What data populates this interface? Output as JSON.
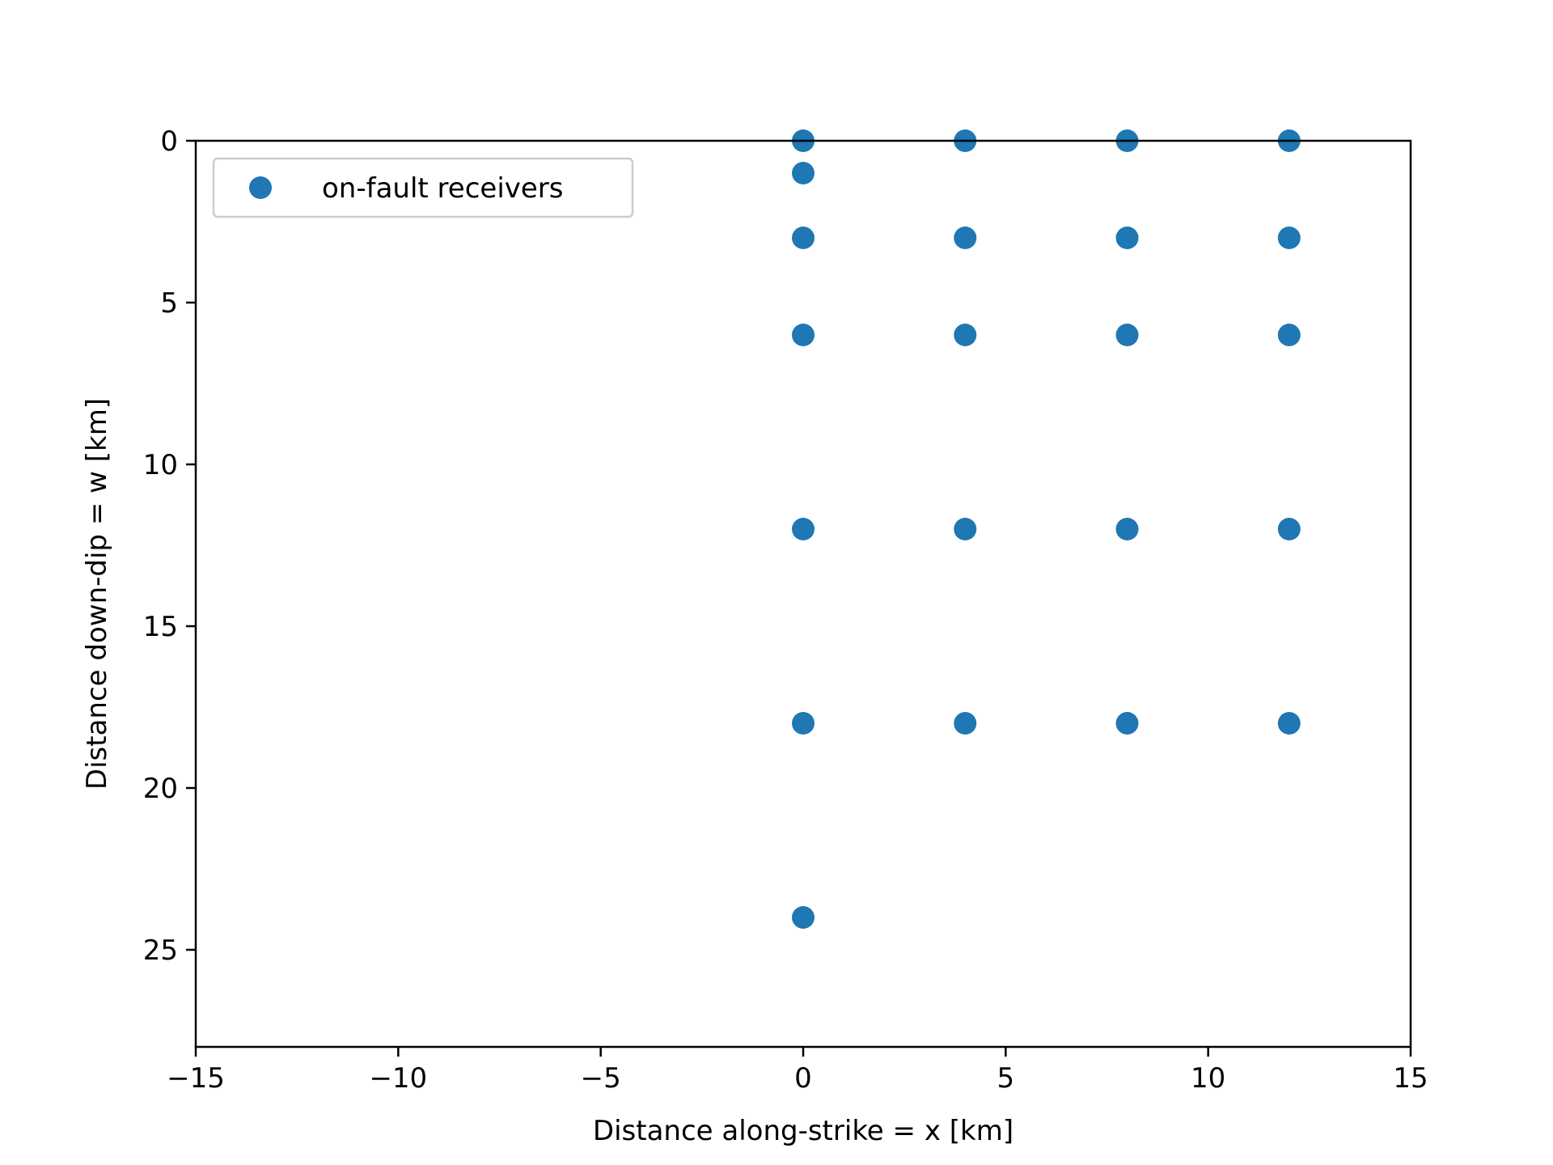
{
  "chart_data": {
    "type": "scatter",
    "title": "",
    "xlabel": "Distance along-strike = x [km]",
    "ylabel": "Distance down-dip = w [km]",
    "xlim": [
      -15,
      15
    ],
    "ylim": [
      28,
      0
    ],
    "y_inverted": true,
    "grid": false,
    "legend_position": "upper-left",
    "x_ticks": [
      -15,
      -10,
      -5,
      0,
      5,
      10,
      15
    ],
    "x_tick_labels": [
      "−15",
      "−10",
      "−5",
      "0",
      "5",
      "10",
      "15"
    ],
    "y_ticks": [
      0,
      5,
      10,
      15,
      20,
      25
    ],
    "y_tick_labels": [
      "0",
      "5",
      "10",
      "15",
      "20",
      "25"
    ],
    "series": [
      {
        "name": "on-fault receivers",
        "color": "#1f77b4",
        "points": [
          {
            "x": 0,
            "y": 0
          },
          {
            "x": 0,
            "y": 1
          },
          {
            "x": 0,
            "y": 3
          },
          {
            "x": 0,
            "y": 6
          },
          {
            "x": 0,
            "y": 12
          },
          {
            "x": 0,
            "y": 18
          },
          {
            "x": 0,
            "y": 24
          },
          {
            "x": 4,
            "y": 0
          },
          {
            "x": 4,
            "y": 3
          },
          {
            "x": 4,
            "y": 6
          },
          {
            "x": 4,
            "y": 12
          },
          {
            "x": 4,
            "y": 18
          },
          {
            "x": 8,
            "y": 0
          },
          {
            "x": 8,
            "y": 3
          },
          {
            "x": 8,
            "y": 6
          },
          {
            "x": 8,
            "y": 12
          },
          {
            "x": 8,
            "y": 18
          },
          {
            "x": 12,
            "y": 0
          },
          {
            "x": 12,
            "y": 3
          },
          {
            "x": 12,
            "y": 6
          },
          {
            "x": 12,
            "y": 12
          },
          {
            "x": 12,
            "y": 18
          }
        ]
      }
    ]
  }
}
